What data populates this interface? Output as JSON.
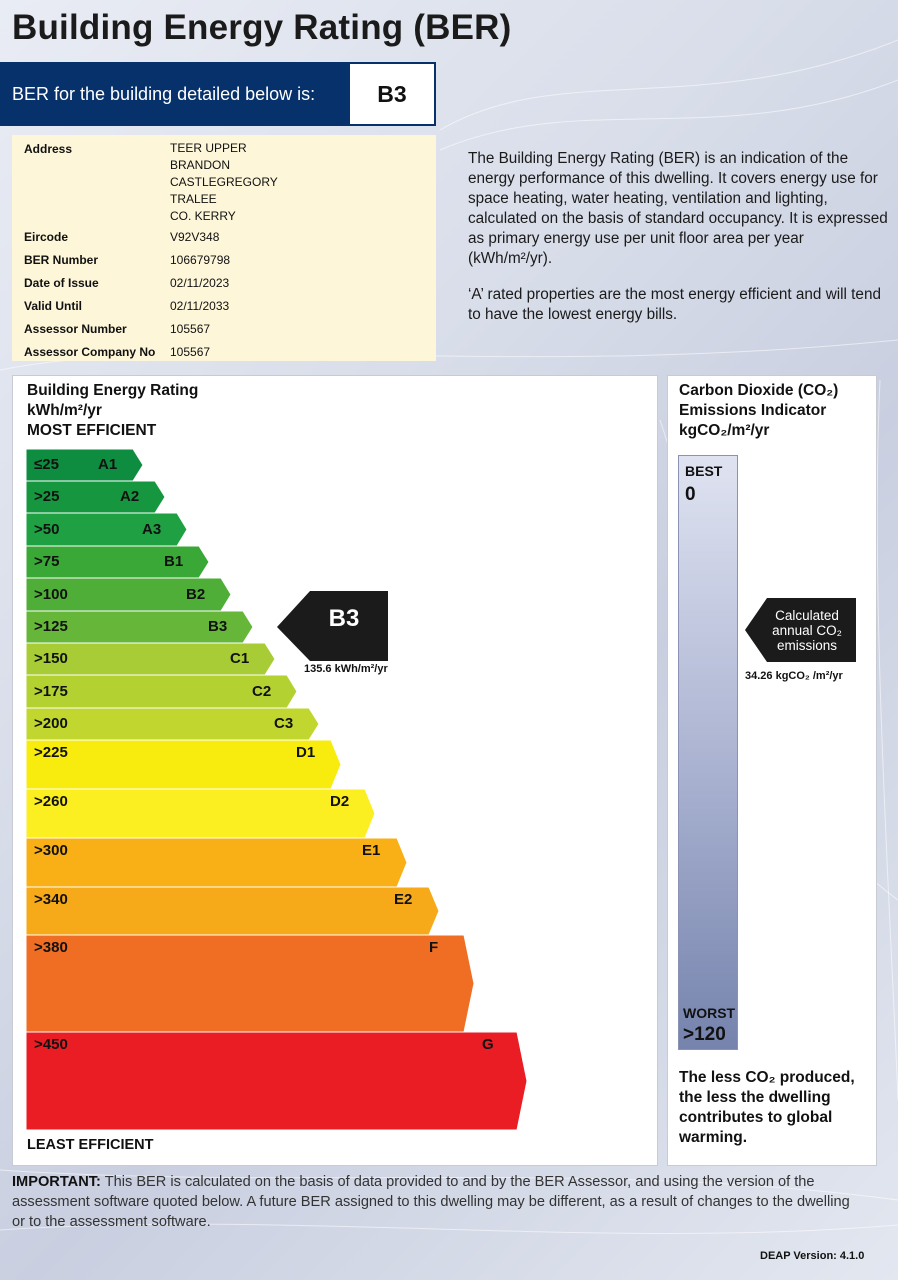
{
  "title": "Building Energy Rating (BER)",
  "banner": {
    "label": "BER for the building detailed below is:",
    "rating": "B3"
  },
  "details": {
    "address_label": "Address",
    "address_lines": [
      "TEER UPPER",
      "BRANDON",
      "CASTLEGREGORY",
      "TRALEE",
      "CO. KERRY"
    ],
    "rows": [
      {
        "label": "Eircode",
        "value": "V92V348"
      },
      {
        "label": "BER Number",
        "value": "106679798"
      },
      {
        "label": "Date of Issue",
        "value": "02/11/2023"
      },
      {
        "label": "Valid Until",
        "value": "02/11/2033"
      },
      {
        "label": "Assessor Number",
        "value": "105567"
      },
      {
        "label": "Assessor Company No",
        "value": "105567"
      }
    ]
  },
  "intro": {
    "p1": "The Building Energy Rating (BER) is an indication of the energy performance of this dwelling.  It covers energy use for space heating, water heating, ventilation and lighting, calculated on the basis of standard occupancy. It is expressed as primary energy use per unit floor area per year (kWh/m²/yr).",
    "p2": "‘A’ rated properties are the most energy efficient and will tend to have the lowest energy bills."
  },
  "scale": {
    "heading_1": "Building Energy Rating",
    "heading_2": "kWh/m²/yr",
    "heading_3": "MOST EFFICIENT",
    "least": "LEAST EFFICIENT",
    "bands": [
      {
        "range": "≤25",
        "grade": "A1",
        "color": "#0e8c40"
      },
      {
        "range": ">25",
        "grade": "A2",
        "color": "#16973f"
      },
      {
        "range": ">50",
        "grade": "A3",
        "color": "#1fa043"
      },
      {
        "range": ">75",
        "grade": "B1",
        "color": "#3aa836"
      },
      {
        "range": ">100",
        "grade": "B2",
        "color": "#4fae38"
      },
      {
        "range": ">125",
        "grade": "B3",
        "color": "#66b63a"
      },
      {
        "range": ">150",
        "grade": "C1",
        "color": "#a7cc35"
      },
      {
        "range": ">175",
        "grade": "C2",
        "color": "#b3d232"
      },
      {
        "range": ">200",
        "grade": "C3",
        "color": "#c1d72f"
      },
      {
        "range": ">225",
        "grade": "D1",
        "color": "#f7ec0e"
      },
      {
        "range": ">260",
        "grade": "D2",
        "color": "#fbee21"
      },
      {
        "range": ">300",
        "grade": "E1",
        "color": "#f8b016"
      },
      {
        "range": ">340",
        "grade": "E2",
        "color": "#f7aa19"
      },
      {
        "range": ">380",
        "grade": "F",
        "color": "#ef6e23"
      },
      {
        "range": ">450",
        "grade": "G",
        "color": "#ea1c24"
      }
    ],
    "rating": "B3",
    "rating_value": "135.6 kWh/m²/yr"
  },
  "co2": {
    "heading_1": "Carbon Dioxide (CO₂)",
    "heading_2": "Emissions Indicator",
    "heading_3": "kgCO₂/m²/yr",
    "best_label": "BEST",
    "best_value": "0",
    "worst_label": "WORST",
    "worst_value": ">120",
    "arrow_text": "Calculated annual CO₂ emissions",
    "value": "34.26 kgCO₂ /m²/yr",
    "footer": "The less CO₂ produced, the less the dwelling contributes to global warming."
  },
  "important": {
    "lead": "IMPORTANT:",
    "text": " This BER is calculated on the basis of data provided to and by the BER Assessor, and using the version of the assessment software quoted below.  A future BER assigned to this dwelling may be different, as a result of changes to the dwelling or to the assessment software."
  },
  "deap_version": "DEAP Version: 4.1.0"
}
